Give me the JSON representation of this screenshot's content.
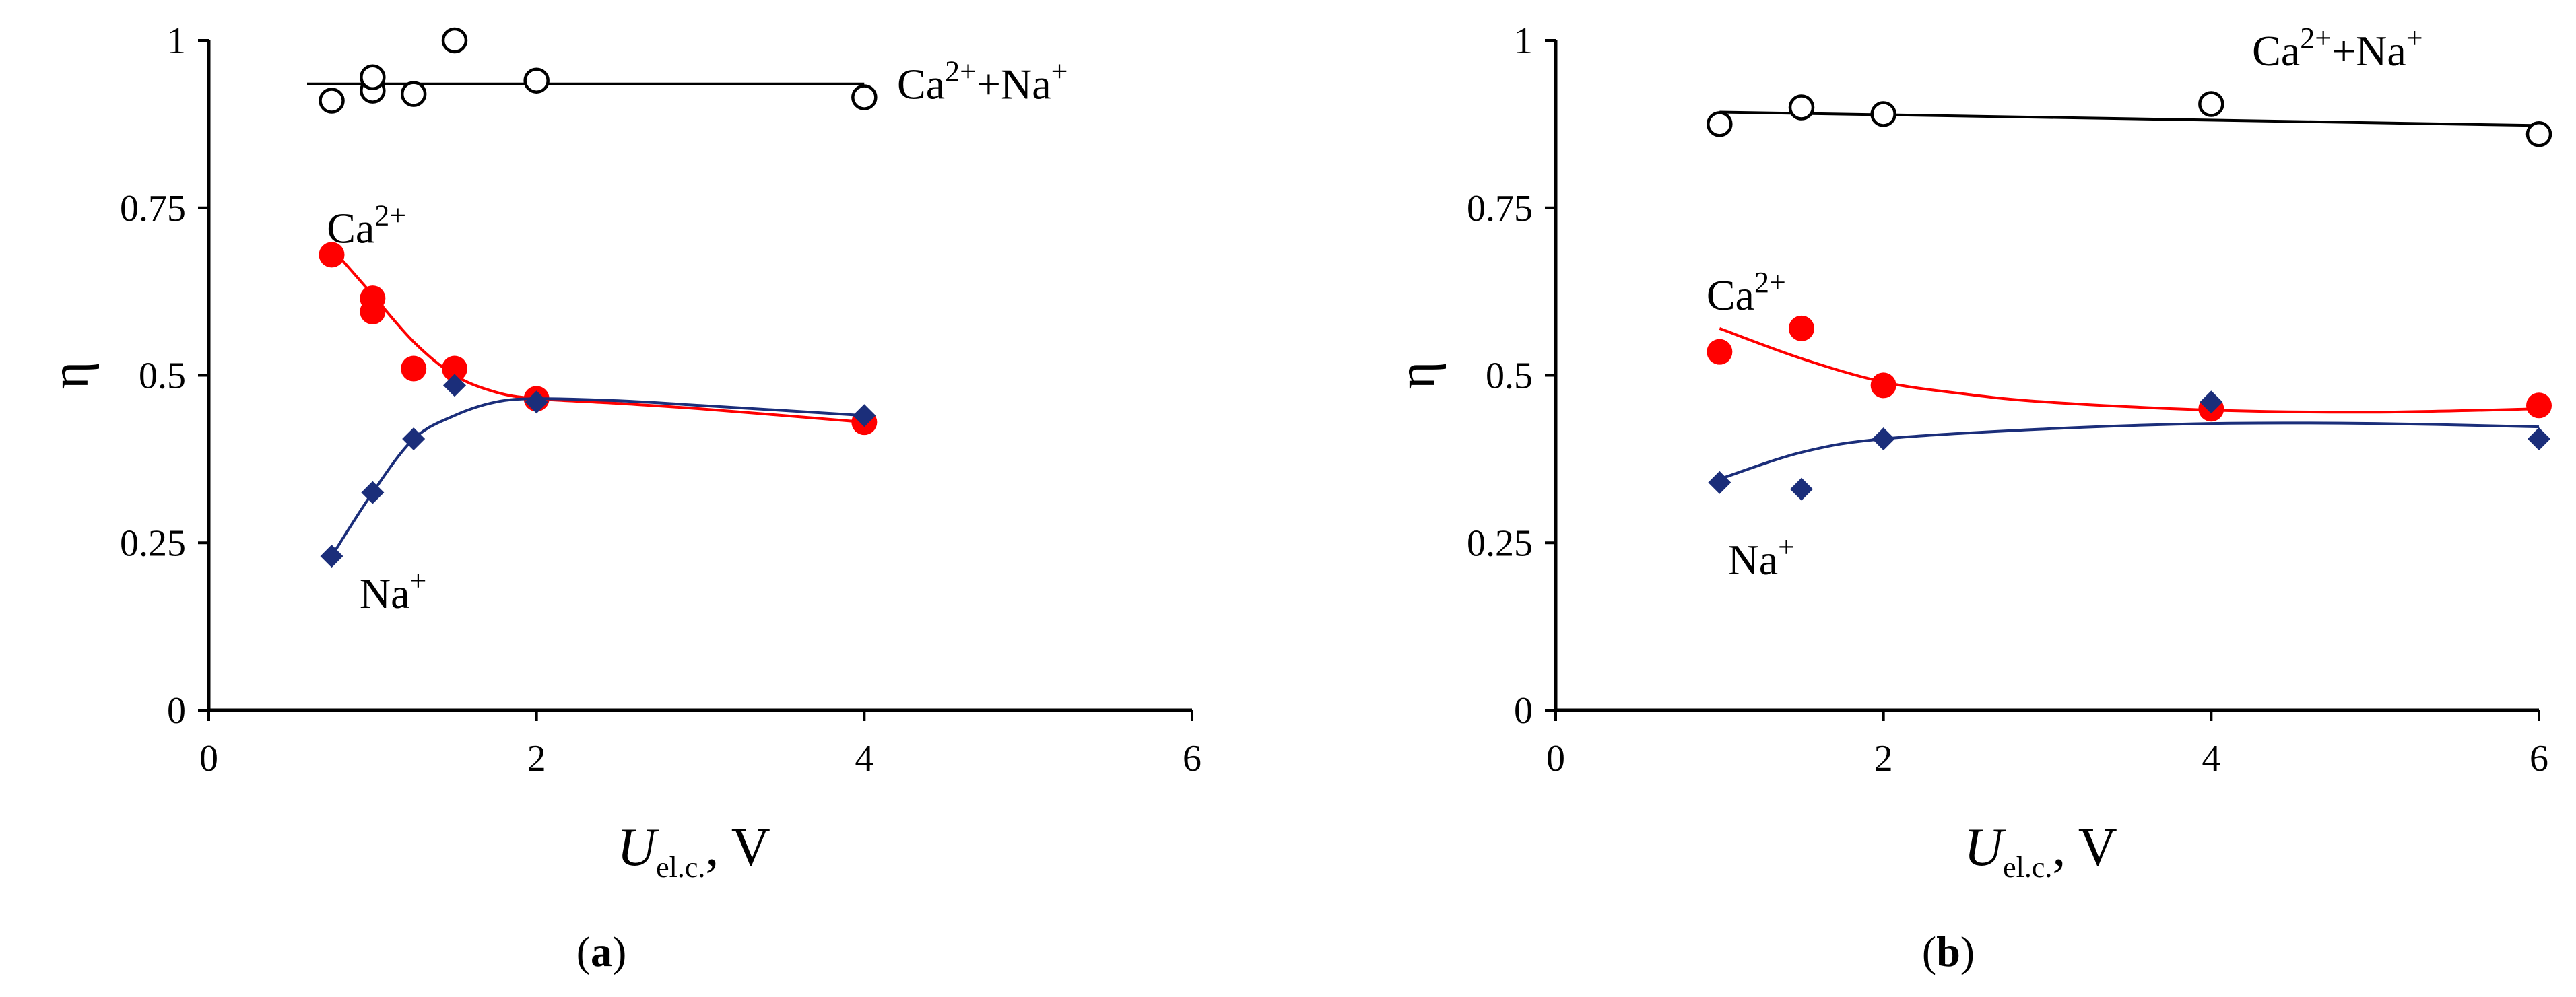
{
  "colors": {
    "axis": "#000000",
    "total": "#000000",
    "calcium": "#ff0000",
    "sodium": "#1b2e7a"
  },
  "chart_data": [
    {
      "type": "scatter",
      "panel_label": "a",
      "xlabel": {
        "main": "U",
        "sub": "el.c.",
        "unit": ", V"
      },
      "ylabel": "η",
      "xlim": [
        0,
        6
      ],
      "ylim": [
        0,
        1
      ],
      "xticks": [
        "0",
        "2",
        "4",
        "6"
      ],
      "yticks": [
        "0",
        "0.25",
        "0.5",
        "0.75",
        "1"
      ],
      "grid": false,
      "legend": "none",
      "series": [
        {
          "name": "Ca²⁺+Na⁺",
          "marker": "open-circle",
          "x": [
            0.75,
            1.0,
            1.0,
            1.25,
            1.5,
            2.0,
            4.0
          ],
          "y": [
            0.91,
            0.925,
            0.945,
            0.92,
            1.0,
            0.94,
            0.915
          ],
          "trend": {
            "x": [
              0.6,
              4.0
            ],
            "y": [
              0.935,
              0.935
            ]
          }
        },
        {
          "name": "Ca²⁺",
          "marker": "filled-circle",
          "x": [
            0.75,
            1.0,
            1.0,
            1.25,
            1.5,
            2.0,
            4.0
          ],
          "y": [
            0.68,
            0.615,
            0.595,
            0.51,
            0.51,
            0.465,
            0.43
          ],
          "trend": {
            "x": [
              0.75,
              1.0,
              1.25,
              1.5,
              1.75,
              2.0,
              2.5,
              3.0,
              4.0
            ],
            "y": [
              0.69,
              0.62,
              0.55,
              0.5,
              0.475,
              0.465,
              0.458,
              0.45,
              0.43
            ]
          }
        },
        {
          "name": "Na⁺",
          "marker": "filled-diamond",
          "x": [
            0.75,
            1.0,
            1.25,
            1.5,
            2.0,
            4.0
          ],
          "y": [
            0.23,
            0.325,
            0.405,
            0.485,
            0.46,
            0.44
          ],
          "trend": {
            "x": [
              0.75,
              1.0,
              1.25,
              1.5,
              1.75,
              2.0,
              2.5,
              3.0,
              4.0
            ],
            "y": [
              0.23,
              0.325,
              0.405,
              0.44,
              0.46,
              0.465,
              0.462,
              0.455,
              0.44
            ]
          }
        }
      ],
      "annotations": [
        {
          "series": 0,
          "main": "Ca",
          "sup": "2+",
          "rest": "+Na",
          "sup2": "+",
          "x": 4.2,
          "y": 0.935
        },
        {
          "series": 1,
          "main": "Ca",
          "sup": "2+",
          "rest": "",
          "sup2": "",
          "x": 0.72,
          "y": 0.72
        },
        {
          "series": 2,
          "main": "Na",
          "sup": "+",
          "rest": "",
          "sup2": "",
          "x": 0.92,
          "y": 0.175
        }
      ]
    },
    {
      "type": "scatter",
      "panel_label": "b",
      "xlabel": {
        "main": "U",
        "sub": "el.c.",
        "unit": ", V"
      },
      "ylabel": "η",
      "xlim": [
        0,
        6
      ],
      "ylim": [
        0,
        1
      ],
      "xticks": [
        "0",
        "2",
        "4",
        "6"
      ],
      "yticks": [
        "0",
        "0.25",
        "0.5",
        "0.75",
        "1"
      ],
      "grid": false,
      "legend": "none",
      "series": [
        {
          "name": "Ca²⁺+Na⁺",
          "marker": "open-circle",
          "x": [
            1.0,
            1.5,
            2.0,
            4.0,
            6.0
          ],
          "y": [
            0.875,
            0.9,
            0.89,
            0.905,
            0.86
          ],
          "trend": {
            "x": [
              1.0,
              6.0
            ],
            "y": [
              0.893,
              0.873
            ]
          }
        },
        {
          "name": "Ca²⁺",
          "marker": "filled-circle",
          "x": [
            1.0,
            1.5,
            2.0,
            4.0,
            6.0
          ],
          "y": [
            0.535,
            0.57,
            0.485,
            0.45,
            0.455
          ],
          "trend": {
            "x": [
              1.0,
              1.5,
              2.0,
              2.5,
              3.0,
              4.0,
              5.0,
              6.0
            ],
            "y": [
              0.57,
              0.525,
              0.49,
              0.472,
              0.46,
              0.448,
              0.445,
              0.45
            ]
          }
        },
        {
          "name": "Na⁺",
          "marker": "filled-diamond",
          "x": [
            1.0,
            1.5,
            2.0,
            4.0,
            6.0
          ],
          "y": [
            0.34,
            0.33,
            0.405,
            0.46,
            0.405
          ],
          "trend": {
            "x": [
              1.0,
              1.5,
              2.0,
              3.0,
              4.0,
              5.0,
              6.0
            ],
            "y": [
              0.345,
              0.385,
              0.405,
              0.42,
              0.428,
              0.428,
              0.423
            ]
          }
        }
      ],
      "annotations": [
        {
          "series": 0,
          "main": "Ca",
          "sup": "2+",
          "rest": "+Na",
          "sup2": "+",
          "x": 4.25,
          "y": 0.985
        },
        {
          "series": 1,
          "main": "Ca",
          "sup": "2+",
          "rest": "",
          "sup2": "",
          "x": 0.92,
          "y": 0.62
        },
        {
          "series": 2,
          "main": "Na",
          "sup": "+",
          "rest": "",
          "sup2": "",
          "x": 1.05,
          "y": 0.225
        }
      ]
    }
  ]
}
